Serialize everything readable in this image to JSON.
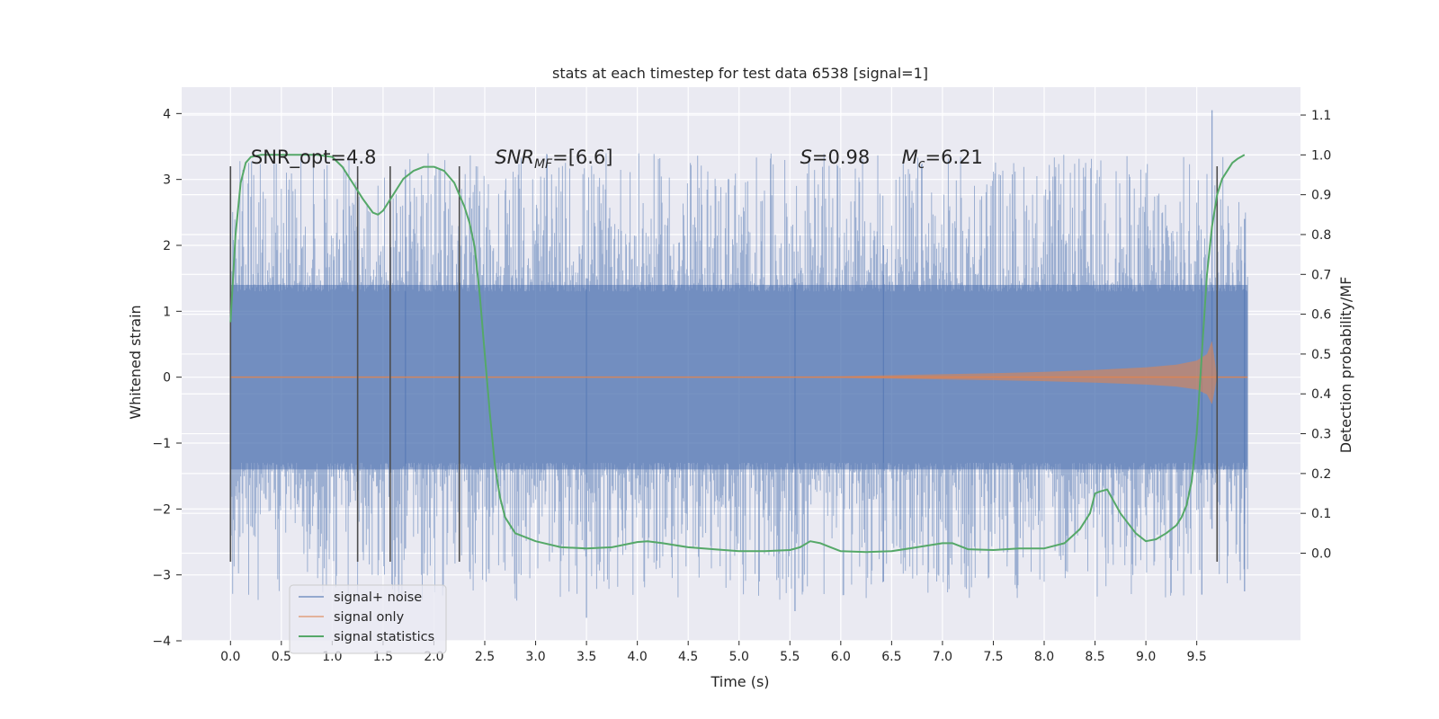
{
  "chart_data": {
    "type": "line",
    "title": "stats at each timestep for test data 6538 [signal=1]",
    "xlabel": "Time (s)",
    "ylabel": "Whitened strain",
    "y2label": "Detection probability/MF",
    "xlim": [
      -0.48,
      10.52
    ],
    "ylim": [
      -4.0,
      4.4
    ],
    "y2lim": [
      -0.22,
      1.17
    ],
    "xticks": [
      0.0,
      0.5,
      1.0,
      1.5,
      2.0,
      2.5,
      3.0,
      3.5,
      4.0,
      4.5,
      5.0,
      5.5,
      6.0,
      6.5,
      7.0,
      7.5,
      8.0,
      8.5,
      9.0,
      9.5
    ],
    "xtick_labels": [
      "0.0",
      "0.5",
      "1.0",
      "1.5",
      "2.0",
      "2.5",
      "3.0",
      "3.5",
      "4.0",
      "4.5",
      "5.0",
      "5.5",
      "6.0",
      "6.5",
      "7.0",
      "7.5",
      "8.0",
      "8.5",
      "9.0",
      "9.5"
    ],
    "yticks": [
      -4,
      -3,
      -2,
      -1,
      0,
      1,
      2,
      3,
      4
    ],
    "ytick_labels": [
      "−4",
      "−3",
      "−2",
      "−1",
      "0",
      "1",
      "2",
      "3",
      "4"
    ],
    "y2ticks": [
      0.0,
      0.1,
      0.2,
      0.3,
      0.4,
      0.5,
      0.6,
      0.7,
      0.8,
      0.9,
      1.0,
      1.1
    ],
    "y2tick_labels": [
      "0.0",
      "0.1",
      "0.2",
      "0.3",
      "0.4",
      "0.5",
      "0.6",
      "0.7",
      "0.8",
      "0.9",
      "1.0",
      "1.1"
    ],
    "grid": true,
    "legend_position": "lower-left",
    "series": [
      {
        "name": "signal+ noise",
        "color": "#4c72b0",
        "axis": "left",
        "x_range": [
          0.0,
          10.0
        ],
        "core_band": [
          -1.4,
          1.4
        ],
        "extreme_range": [
          -3.65,
          4.05
        ]
      },
      {
        "name": "signal only",
        "color": "#dd8452",
        "axis": "left",
        "x_range": [
          0.0,
          10.0
        ],
        "envelope": {
          "x": [
            0.0,
            5.0,
            5.5,
            6.0,
            6.5,
            7.0,
            7.5,
            8.0,
            8.5,
            9.0,
            9.3,
            9.5,
            9.6,
            9.65,
            9.7,
            10.0
          ],
          "amp": [
            0.0,
            0.0,
            0.005,
            0.015,
            0.03,
            0.045,
            0.06,
            0.08,
            0.11,
            0.15,
            0.19,
            0.25,
            0.35,
            0.55,
            0.0,
            0.0
          ]
        }
      },
      {
        "name": "signal statistics",
        "color": "#55a868",
        "axis": "right",
        "x": [
          0.0,
          0.05,
          0.1,
          0.15,
          0.2,
          0.3,
          0.5,
          0.7,
          0.85,
          1.0,
          1.1,
          1.2,
          1.3,
          1.4,
          1.45,
          1.5,
          1.6,
          1.7,
          1.8,
          1.9,
          2.0,
          2.1,
          2.2,
          2.25,
          2.3,
          2.35,
          2.4,
          2.45,
          2.5,
          2.55,
          2.6,
          2.65,
          2.7,
          2.8,
          3.0,
          3.25,
          3.5,
          3.75,
          4.0,
          4.1,
          4.25,
          4.5,
          4.75,
          5.0,
          5.25,
          5.5,
          5.6,
          5.7,
          5.8,
          5.9,
          6.0,
          6.25,
          6.5,
          6.75,
          7.0,
          7.1,
          7.25,
          7.5,
          7.75,
          8.0,
          8.2,
          8.35,
          8.45,
          8.5,
          8.55,
          8.62,
          8.75,
          8.9,
          9.0,
          9.1,
          9.2,
          9.3,
          9.35,
          9.4,
          9.45,
          9.5,
          9.55,
          9.6,
          9.65,
          9.7,
          9.75,
          9.8,
          9.85,
          9.9,
          9.97
        ],
        "y": [
          0.58,
          0.8,
          0.93,
          0.98,
          0.995,
          1.0,
          1.0,
          1.0,
          1.0,
          0.995,
          0.97,
          0.93,
          0.89,
          0.855,
          0.85,
          0.86,
          0.9,
          0.94,
          0.96,
          0.97,
          0.97,
          0.96,
          0.93,
          0.9,
          0.87,
          0.83,
          0.77,
          0.65,
          0.5,
          0.35,
          0.22,
          0.14,
          0.09,
          0.05,
          0.03,
          0.015,
          0.012,
          0.015,
          0.028,
          0.03,
          0.025,
          0.015,
          0.01,
          0.005,
          0.005,
          0.008,
          0.015,
          0.03,
          0.025,
          0.015,
          0.005,
          0.003,
          0.005,
          0.015,
          0.025,
          0.025,
          0.01,
          0.008,
          0.012,
          0.012,
          0.025,
          0.06,
          0.1,
          0.15,
          0.155,
          0.16,
          0.1,
          0.05,
          0.03,
          0.035,
          0.05,
          0.07,
          0.09,
          0.12,
          0.18,
          0.3,
          0.5,
          0.7,
          0.82,
          0.9,
          0.94,
          0.96,
          0.98,
          0.99,
          1.0
        ]
      }
    ],
    "vertical_markers": {
      "color": "#4d4d4d",
      "x": [
        0.0,
        1.25,
        1.57,
        2.25,
        9.7
      ],
      "y_range": [
        -2.8,
        3.2
      ]
    },
    "annotations": [
      {
        "id": "snr-opt",
        "text": "SNR_opt=4.8",
        "x": 0.2,
        "y": 3.2
      },
      {
        "id": "snr-mf",
        "text": "SNR",
        "sub": "MF",
        "rest": "=[6.6]",
        "x": 2.6,
        "y": 3.2
      },
      {
        "id": "s-stat",
        "text": "S",
        "rest": "=0.98",
        "x": 5.6,
        "y": 3.2
      },
      {
        "id": "mc",
        "text": "M",
        "sub": "c",
        "rest": "=6.21",
        "x": 6.6,
        "y": 3.2
      }
    ],
    "plot_background": "#eaeaf2",
    "grid_color": "#ffffff"
  }
}
